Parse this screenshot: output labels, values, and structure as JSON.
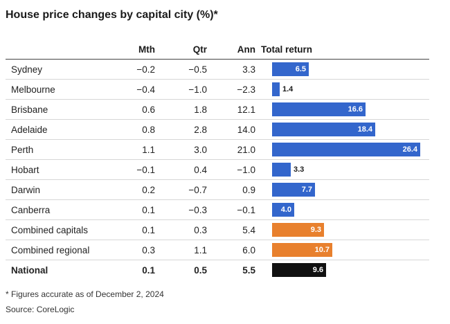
{
  "title": "House price changes by capital city (%)*",
  "columns": {
    "city": "",
    "mth": "Mth",
    "qtr": "Qtr",
    "ann": "Ann",
    "total": "Total return"
  },
  "colors": {
    "capital": "#3366cc",
    "combined": "#e8802d",
    "national": "#111111"
  },
  "footnote": "* Figures accurate as of December 2, 2024",
  "source": "Source: CoreLogic",
  "chart_data": {
    "type": "table",
    "title": "House price changes by capital city (%)*",
    "columns": [
      "Mth",
      "Qtr",
      "Ann",
      "Total return"
    ],
    "bar_column": "Total return",
    "bar_max": 26.4,
    "rows": [
      {
        "name": "Sydney",
        "mth": "−0.2",
        "qtr": "−0.5",
        "ann": "3.3",
        "total": 6.5,
        "total_label": "6.5",
        "group": "capital"
      },
      {
        "name": "Melbourne",
        "mth": "−0.4",
        "qtr": "−1.0",
        "ann": "−2.3",
        "total": 1.4,
        "total_label": "1.4",
        "group": "capital"
      },
      {
        "name": "Brisbane",
        "mth": "0.6",
        "qtr": "1.8",
        "ann": "12.1",
        "total": 16.6,
        "total_label": "16.6",
        "group": "capital"
      },
      {
        "name": "Adelaide",
        "mth": "0.8",
        "qtr": "2.8",
        "ann": "14.0",
        "total": 18.4,
        "total_label": "18.4",
        "group": "capital"
      },
      {
        "name": "Perth",
        "mth": "1.1",
        "qtr": "3.0",
        "ann": "21.0",
        "total": 26.4,
        "total_label": "26.4",
        "group": "capital"
      },
      {
        "name": "Hobart",
        "mth": "−0.1",
        "qtr": "0.4",
        "ann": "−1.0",
        "total": 3.3,
        "total_label": "3.3",
        "group": "capital"
      },
      {
        "name": "Darwin",
        "mth": "0.2",
        "qtr": "−0.7",
        "ann": "0.9",
        "total": 7.7,
        "total_label": "7.7",
        "group": "capital"
      },
      {
        "name": "Canberra",
        "mth": "0.1",
        "qtr": "−0.3",
        "ann": "−0.1",
        "total": 4.0,
        "total_label": "4.0",
        "group": "capital"
      },
      {
        "name": "Combined capitals",
        "mth": "0.1",
        "qtr": "0.3",
        "ann": "5.4",
        "total": 9.3,
        "total_label": "9.3",
        "group": "combined"
      },
      {
        "name": "Combined regional",
        "mth": "0.3",
        "qtr": "1.1",
        "ann": "6.0",
        "total": 10.7,
        "total_label": "10.7",
        "group": "combined"
      },
      {
        "name": "National",
        "mth": "0.1",
        "qtr": "0.5",
        "ann": "5.5",
        "total": 9.6,
        "total_label": "9.6",
        "group": "national"
      }
    ]
  }
}
